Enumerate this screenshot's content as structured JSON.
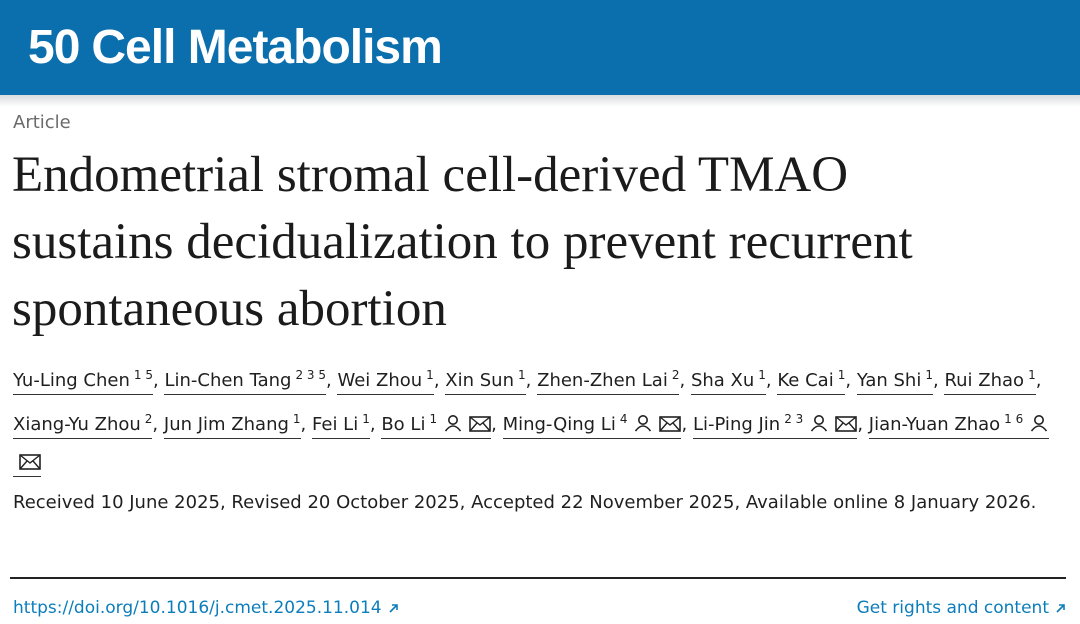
{
  "header": {
    "badge": "50",
    "brand": "Cell Metabolism"
  },
  "article": {
    "type_label": "Article",
    "title": "Endometrial stromal cell-derived TMAO sustains decidualization to prevent recurrent spontaneous abortion",
    "separator": ",",
    "authors": [
      {
        "name": "Yu-Ling Chen",
        "affiliations": "1 5",
        "corresponding": false
      },
      {
        "name": "Lin-Chen Tang",
        "affiliations": "2 3 5",
        "corresponding": false
      },
      {
        "name": "Wei Zhou",
        "affiliations": "1",
        "corresponding": false
      },
      {
        "name": "Xin Sun",
        "affiliations": "1",
        "corresponding": false
      },
      {
        "name": "Zhen-Zhen Lai",
        "affiliations": "2",
        "corresponding": false
      },
      {
        "name": "Sha Xu",
        "affiliations": "1",
        "corresponding": false
      },
      {
        "name": "Ke Cai",
        "affiliations": "1",
        "corresponding": false
      },
      {
        "name": "Yan Shi",
        "affiliations": "1",
        "corresponding": false
      },
      {
        "name": "Rui Zhao",
        "affiliations": "1",
        "corresponding": false
      },
      {
        "name": "Xiang-Yu Zhou",
        "affiliations": "2",
        "corresponding": false
      },
      {
        "name": "Jun Jim Zhang",
        "affiliations": "1",
        "corresponding": false
      },
      {
        "name": "Fei Li",
        "affiliations": "1",
        "corresponding": false
      },
      {
        "name": "Bo Li",
        "affiliations": "1",
        "corresponding": true
      },
      {
        "name": "Ming-Qing Li",
        "affiliations": "4",
        "corresponding": true
      },
      {
        "name": "Li-Ping Jin",
        "affiliations": "2 3",
        "corresponding": true
      },
      {
        "name": "Jian-Yuan Zhao",
        "affiliations": "1 6",
        "corresponding": true
      }
    ],
    "history": "Received 10 June 2025, Revised 20 October 2025, Accepted 22 November 2025, Available online 8 January 2026.",
    "doi": "https://doi.org/10.1016/j.cmet.2025.11.014",
    "rights": "Get rights and content"
  }
}
